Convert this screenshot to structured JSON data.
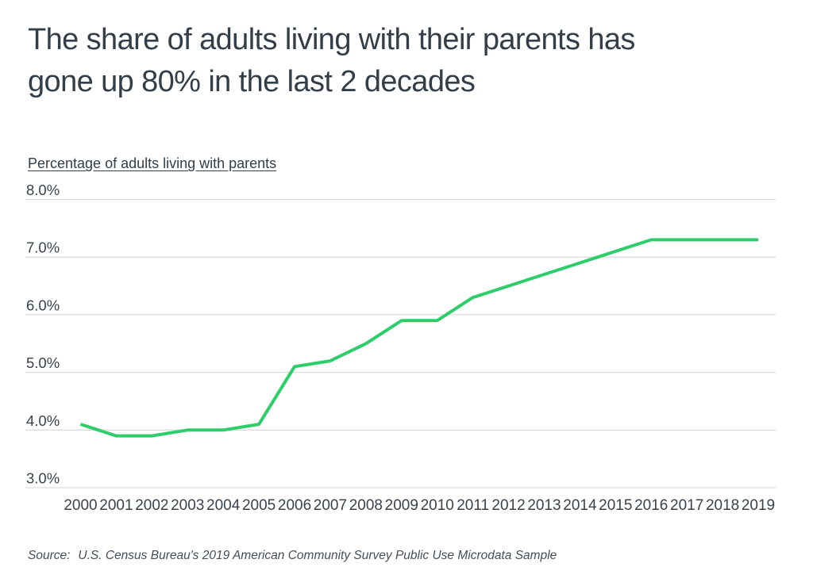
{
  "page": {
    "background_color": "#ffffff",
    "text_color": "#333e48"
  },
  "header": {
    "title_lines": [
      "The share of adults living with their parents has",
      "gone up 80% in the last 2 decades"
    ]
  },
  "chart_data": {
    "type": "line",
    "title": "The share of adults living with their parents has gone up 80% in the last 2 decades",
    "axis_title": "Percentage of adults living with parents",
    "xlabel": "",
    "ylabel": "Percentage of adults living with parents",
    "x": [
      2000,
      2001,
      2002,
      2003,
      2004,
      2005,
      2006,
      2007,
      2008,
      2009,
      2010,
      2011,
      2012,
      2013,
      2014,
      2015,
      2016,
      2017,
      2018,
      2019
    ],
    "series": [
      {
        "name": "Percentage of adults living with parents",
        "values": [
          4.1,
          3.9,
          3.9,
          4.0,
          4.0,
          4.1,
          5.1,
          5.2,
          5.5,
          5.9,
          5.9,
          6.3,
          6.5,
          6.7,
          6.9,
          7.1,
          7.3,
          7.3,
          7.3,
          7.3
        ]
      }
    ],
    "ylim": [
      3.0,
      8.0
    ],
    "y_ticks": [
      {
        "value": 8.0,
        "label": "8.0%"
      },
      {
        "value": 7.0,
        "label": "7.0%"
      },
      {
        "value": 6.0,
        "label": "6.0%"
      },
      {
        "value": 5.0,
        "label": "5.0%"
      },
      {
        "value": 4.0,
        "label": "4.0%"
      },
      {
        "value": 3.0,
        "label": "3.0%"
      }
    ],
    "grid": true,
    "legend_position": "none",
    "line_color": "#2dce6a",
    "grid_color": "#dcdcdc",
    "tick_label_color": "#39434d"
  },
  "footer": {
    "source_label": "Source:",
    "source_text": "U.S. Census Bureau's 2019 American Community Survey Public Use Microdata Sample"
  }
}
